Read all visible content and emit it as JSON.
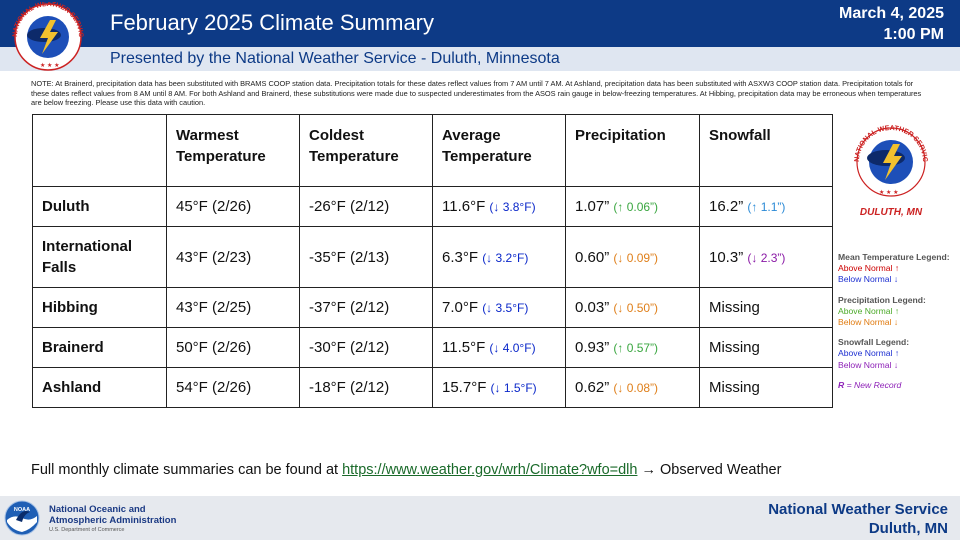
{
  "header": {
    "title": "February 2025 Climate Summary",
    "date": "March 4, 2025",
    "time": "1:00 PM",
    "subtitle": "Presented by the National Weather Service - Duluth, Minnesota"
  },
  "logo": {
    "ring_text": "NATIONAL WEATHER SERVICE"
  },
  "side_logo": {
    "ring_text": "NATIONAL WEATHER SERVICE",
    "caption": "DULUTH, MN"
  },
  "note": "NOTE: At Brainerd, precipitation data has been substituted with BRAMS COOP station data. Precipitation totals for these dates reflect values from 7 AM until 7 AM. At Ashland, precipitation data has been substituted with ASXW3 COOP station data. Precipitation totals for these dates reflect values from 8 AM until 8 AM. For both Ashland and Brainerd, these substitutions were made due to suspected underestimates from the ASOS rain gauge in below-freezing temperatures. At Hibbing, precipitation data may be erroneous when temperatures are below freezing. Please use this data with caution.",
  "table": {
    "headers": [
      "",
      "Warmest Temperature",
      "Coldest Temperature",
      "Average Temperature",
      "Precipitation",
      "Snowfall"
    ],
    "rows": [
      {
        "city": "Duluth",
        "warm": "45°F (2/26)",
        "cold": "-26°F (2/12)",
        "avg": "11.6°F",
        "avg_delta": "(↓ 3.8°F)",
        "precip": "1.07”",
        "precip_delta": "(↑ 0.06”)",
        "snow": "16.2”",
        "snow_delta": "(↑ 1.1”)"
      },
      {
        "city": "International Falls",
        "warm": "43°F (2/23)",
        "cold": "-35°F (2/13)",
        "avg": "6.3°F",
        "avg_delta": "(↓ 3.2°F)",
        "precip": "0.60”",
        "precip_delta": "(↓ 0.09”)",
        "snow": "10.3”",
        "snow_delta": "(↓ 2.3”)"
      },
      {
        "city": "Hibbing",
        "warm": "43°F (2/25)",
        "cold": "-37°F (2/12)",
        "avg": "7.0°F",
        "avg_delta": "(↓ 3.5°F)",
        "precip": "0.03”",
        "precip_delta": "(↓ 0.50”)",
        "snow": "Missing",
        "snow_delta": ""
      },
      {
        "city": "Brainerd",
        "warm": "50°F (2/26)",
        "cold": "-30°F (2/12)",
        "avg": "11.5°F",
        "avg_delta": "(↓ 4.0°F)",
        "precip": "0.93”",
        "precip_delta": "(↑ 0.57”)",
        "snow": "Missing",
        "snow_delta": ""
      },
      {
        "city": "Ashland",
        "warm": "54°F (2/26)",
        "cold": "-18°F (2/12)",
        "avg": "15.7°F",
        "avg_delta": "(↓ 1.5°F)",
        "precip": "0.62”",
        "precip_delta": "(↓ 0.08”)",
        "snow": "Missing",
        "snow_delta": ""
      }
    ]
  },
  "legend": {
    "mean_temp_title": "Mean Temperature Legend:",
    "mean_above": "Above Normal ↑",
    "mean_below": "Below Normal ↓",
    "precip_title": "Precipitation Legend:",
    "precip_above": "Above Normal ↑",
    "precip_below": "Below Normal ↓",
    "snow_title": "Snowfall Legend:",
    "snow_above": "Above Normal ↑",
    "snow_below": "Below Normal ↓",
    "record_letter": "R",
    "record_text": " = New Record"
  },
  "link_line": {
    "prefix": "Full monthly climate summaries can be found at ",
    "url": "https://www.weather.gov/wrh/Climate?wfo=dlh",
    "suffix": "  → Observed Weather"
  },
  "footer": {
    "noaa_line1": "National Oceanic and",
    "noaa_line2": "Atmospheric Administration",
    "noaa_dept": "U.S. Department of Commerce",
    "nws_line1": "National Weather Service",
    "nws_line2": "Duluth, MN"
  },
  "colors": {
    "header_bg": "#0d3a86",
    "subbar_bg": "#dfe6f1",
    "temp_below": "#0a27c9",
    "precip_above": "#3aa640",
    "precip_below": "#df7f1a",
    "snow_above": "#2b8ad6",
    "snow_below": "#8a1aa6"
  }
}
